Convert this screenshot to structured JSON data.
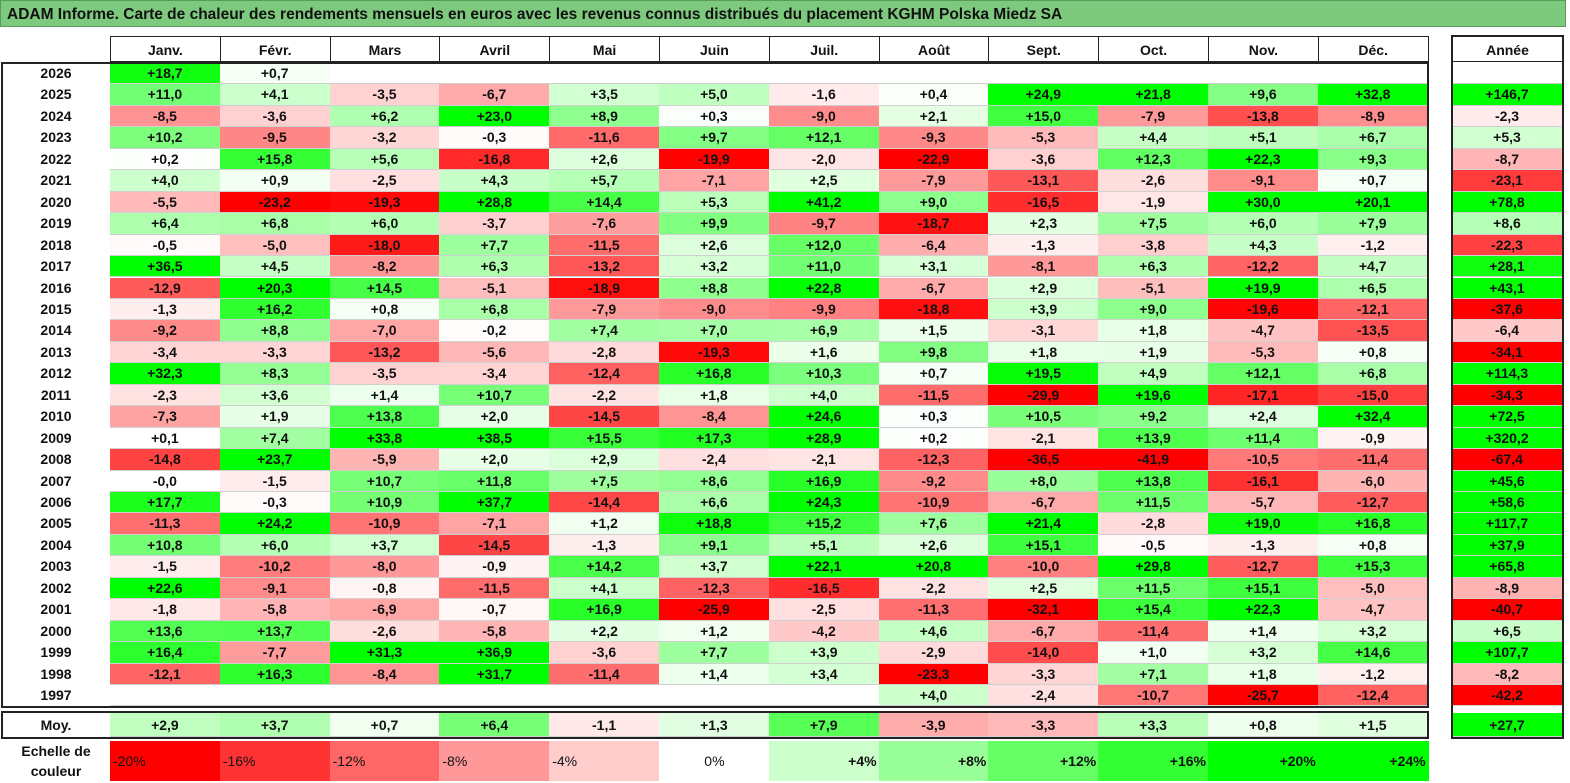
{
  "title": "ADAM Informe. Carte de chaleur des rendements mensuels en euros avec les revenus connus distribués du placement KGHM Polska Miedz SA",
  "chart_data": {
    "type": "heatmap",
    "months": [
      "Janv.",
      "Févr.",
      "Mars",
      "Avril",
      "Mai",
      "Juin",
      "Juil.",
      "Août",
      "Sept.",
      "Oct.",
      "Nov.",
      "Déc."
    ],
    "year_header": "Année",
    "rows": [
      {
        "year": "2026",
        "values": [
          "+18,7",
          "+0,7",
          "",
          "",
          "",
          "",
          "",
          "",
          "",
          "",
          "",
          ""
        ],
        "annual": ""
      },
      {
        "year": "2025",
        "values": [
          "+11,0",
          "+4,1",
          "-3,5",
          "-6,7",
          "+3,5",
          "+5,0",
          "-1,6",
          "+0,4",
          "+24,9",
          "+21,8",
          "+9,6",
          "+32,8"
        ],
        "annual": "+146,7"
      },
      {
        "year": "2024",
        "values": [
          "-8,5",
          "-3,6",
          "+6,2",
          "+23,0",
          "+8,9",
          "+0,3",
          "-9,0",
          "+2,1",
          "+15,0",
          "-7,9",
          "-13,8",
          "-8,9"
        ],
        "annual": "-2,3"
      },
      {
        "year": "2023",
        "values": [
          "+10,2",
          "-9,5",
          "-3,2",
          "-0,3",
          "-11,6",
          "+9,7",
          "+12,1",
          "-9,3",
          "-5,3",
          "+4,4",
          "+5,1",
          "+6,7"
        ],
        "annual": "+5,3"
      },
      {
        "year": "2022",
        "values": [
          "+0,2",
          "+15,8",
          "+5,6",
          "-16,8",
          "+2,6",
          "-19,9",
          "-2,0",
          "-22,9",
          "-3,6",
          "+12,3",
          "+22,3",
          "+9,3"
        ],
        "annual": "-8,7"
      },
      {
        "year": "2021",
        "values": [
          "+4,0",
          "+0,9",
          "-2,5",
          "+4,3",
          "+5,7",
          "-7,1",
          "+2,5",
          "-7,9",
          "-13,1",
          "-2,6",
          "-9,1",
          "+0,7"
        ],
        "annual": "-23,1"
      },
      {
        "year": "2020",
        "values": [
          "-5,5",
          "-23,2",
          "-19,3",
          "+28,8",
          "+14,4",
          "+5,3",
          "+41,2",
          "+9,0",
          "-16,5",
          "-1,9",
          "+30,0",
          "+20,1"
        ],
        "annual": "+78,8"
      },
      {
        "year": "2019",
        "values": [
          "+6,4",
          "+6,8",
          "+6,0",
          "-3,7",
          "-7,6",
          "+9,9",
          "-9,7",
          "-18,7",
          "+2,3",
          "+7,5",
          "+6,0",
          "+7,9"
        ],
        "annual": "+8,6"
      },
      {
        "year": "2018",
        "values": [
          "-0,5",
          "-5,0",
          "-18,0",
          "+7,7",
          "-11,5",
          "+2,6",
          "+12,0",
          "-6,4",
          "-1,3",
          "-3,8",
          "+4,3",
          "-1,2"
        ],
        "annual": "-22,3"
      },
      {
        "year": "2017",
        "values": [
          "+36,5",
          "+4,5",
          "-8,2",
          "+6,3",
          "-13,2",
          "+3,2",
          "+11,0",
          "+3,1",
          "-8,1",
          "+6,3",
          "-12,2",
          "+4,7"
        ],
        "annual": "+28,1"
      },
      {
        "year": "2016",
        "values": [
          "-12,9",
          "+20,3",
          "+14,5",
          "-5,1",
          "-18,9",
          "+8,8",
          "+22,8",
          "-6,7",
          "+2,9",
          "-5,1",
          "+19,9",
          "+6,5"
        ],
        "annual": "+43,1"
      },
      {
        "year": "2015",
        "values": [
          "-1,3",
          "+16,2",
          "+0,8",
          "+6,8",
          "-7,9",
          "-9,0",
          "-9,9",
          "-18,8",
          "+3,9",
          "+9,0",
          "-19,6",
          "-12,1"
        ],
        "annual": "-37,6"
      },
      {
        "year": "2014",
        "values": [
          "-9,2",
          "+8,8",
          "-7,0",
          "-0,2",
          "+7,4",
          "+7,0",
          "+6,9",
          "+1,5",
          "-3,1",
          "+1,8",
          "-4,7",
          "-13,5"
        ],
        "annual": "-6,4"
      },
      {
        "year": "2013",
        "values": [
          "-3,4",
          "-3,3",
          "-13,2",
          "-5,6",
          "-2,8",
          "-19,3",
          "+1,6",
          "+9,8",
          "+1,8",
          "+1,9",
          "-5,3",
          "+0,8"
        ],
        "annual": "-34,1"
      },
      {
        "year": "2012",
        "values": [
          "+32,3",
          "+8,3",
          "-3,5",
          "-3,4",
          "-12,4",
          "+16,8",
          "+10,3",
          "+0,7",
          "+19,5",
          "+4,9",
          "+12,1",
          "+6,8"
        ],
        "annual": "+114,3"
      },
      {
        "year": "2011",
        "values": [
          "-2,3",
          "+3,6",
          "+1,4",
          "+10,7",
          "-2,2",
          "+1,8",
          "+4,0",
          "-11,5",
          "-29,9",
          "+19,6",
          "-17,1",
          "-15,0"
        ],
        "annual": "-34,3"
      },
      {
        "year": "2010",
        "values": [
          "-7,3",
          "+1,9",
          "+13,8",
          "+2,0",
          "-14,5",
          "-8,4",
          "+24,6",
          "+0,3",
          "+10,5",
          "+9,2",
          "+2,4",
          "+32,4"
        ],
        "annual": "+72,5"
      },
      {
        "year": "2009",
        "values": [
          "+0,1",
          "+7,4",
          "+33,8",
          "+38,5",
          "+15,5",
          "+17,3",
          "+28,9",
          "+0,2",
          "-2,1",
          "+13,9",
          "+11,4",
          "-0,9"
        ],
        "annual": "+320,2"
      },
      {
        "year": "2008",
        "values": [
          "-14,8",
          "+23,7",
          "-5,9",
          "+2,0",
          "+2,9",
          "-2,4",
          "-2,1",
          "-12,3",
          "-36,5",
          "-41,9",
          "-10,5",
          "-11,4"
        ],
        "annual": "-67,4"
      },
      {
        "year": "2007",
        "values": [
          "-0,0",
          "-1,5",
          "+10,7",
          "+11,8",
          "+7,5",
          "+8,6",
          "+16,9",
          "-9,2",
          "+8,0",
          "+13,8",
          "-16,1",
          "-6,0"
        ],
        "annual": "+45,6"
      },
      {
        "year": "2006",
        "values": [
          "+17,7",
          "-0,3",
          "+10,9",
          "+37,7",
          "-14,4",
          "+6,6",
          "+24,3",
          "-10,9",
          "-6,7",
          "+11,5",
          "-5,7",
          "-12,7"
        ],
        "annual": "+58,6"
      },
      {
        "year": "2005",
        "values": [
          "-11,3",
          "+24,2",
          "-10,9",
          "-7,1",
          "+1,2",
          "+18,8",
          "+15,2",
          "+7,6",
          "+21,4",
          "-2,8",
          "+19,0",
          "+16,8"
        ],
        "annual": "+117,7"
      },
      {
        "year": "2004",
        "values": [
          "+10,8",
          "+6,0",
          "+3,7",
          "-14,5",
          "-1,3",
          "+9,1",
          "+5,1",
          "+2,6",
          "+15,1",
          "-0,5",
          "-1,3",
          "+0,8"
        ],
        "annual": "+37,9"
      },
      {
        "year": "2003",
        "values": [
          "-1,5",
          "-10,2",
          "-8,0",
          "-0,9",
          "+14,2",
          "+3,7",
          "+22,1",
          "+20,8",
          "-10,0",
          "+29,8",
          "-12,7",
          "+15,3"
        ],
        "annual": "+65,8"
      },
      {
        "year": "2002",
        "values": [
          "+22,6",
          "-9,1",
          "-0,8",
          "-11,5",
          "+4,1",
          "-12,3",
          "-16,5",
          "-2,2",
          "+2,5",
          "+11,5",
          "+15,1",
          "-5,0"
        ],
        "annual": "-8,9"
      },
      {
        "year": "2001",
        "values": [
          "-1,8",
          "-5,8",
          "-6,9",
          "-0,7",
          "+16,9",
          "-25,9",
          "-2,5",
          "-11,3",
          "-32,1",
          "+15,4",
          "+22,3",
          "-4,7"
        ],
        "annual": "-40,7"
      },
      {
        "year": "2000",
        "values": [
          "+13,6",
          "+13,7",
          "-2,6",
          "-5,8",
          "+2,2",
          "+1,2",
          "-4,2",
          "+4,6",
          "-6,7",
          "-11,4",
          "+1,4",
          "+3,2"
        ],
        "annual": "+6,5"
      },
      {
        "year": "1999",
        "values": [
          "+16,4",
          "-7,7",
          "+31,3",
          "+36,9",
          "-3,6",
          "+7,7",
          "+3,9",
          "-2,9",
          "-14,0",
          "+1,0",
          "+3,2",
          "+14,6"
        ],
        "annual": "+107,7"
      },
      {
        "year": "1998",
        "values": [
          "-12,1",
          "+16,3",
          "-8,4",
          "+31,7",
          "-11,4",
          "+1,4",
          "+3,4",
          "-23,3",
          "-3,3",
          "+7,1",
          "+1,8",
          "-1,2"
        ],
        "annual": "-8,2"
      },
      {
        "year": "1997",
        "values": [
          "",
          "",
          "",
          "",
          "",
          "",
          "",
          "+4,0",
          "-2,4",
          "-10,7",
          "-25,7",
          "-12,4"
        ],
        "annual": "-42,2"
      }
    ],
    "average": {
      "label": "Moy.",
      "values": [
        "+2,9",
        "+3,7",
        "+0,7",
        "+6,4",
        "-1,1",
        "+1,3",
        "+7,9",
        "-3,9",
        "-3,3",
        "+3,3",
        "+0,8",
        "+1,5"
      ],
      "annual": "+27,7"
    },
    "scale": {
      "label_line1": "Echelle de",
      "label_line2": "couleur",
      "ticks": [
        "-20%",
        "-16%",
        "-12%",
        "-8%",
        "-4%",
        "0%",
        "+4%",
        "+8%",
        "+12%",
        "+16%",
        "+20%",
        "+24%"
      ],
      "tick_values": [
        -20,
        -16,
        -12,
        -8,
        -4,
        0,
        4,
        8,
        12,
        16,
        20,
        24
      ]
    },
    "colors": {
      "negative": "#ff0000",
      "neutral": "#ffffff",
      "positive": "#00ff00"
    }
  }
}
